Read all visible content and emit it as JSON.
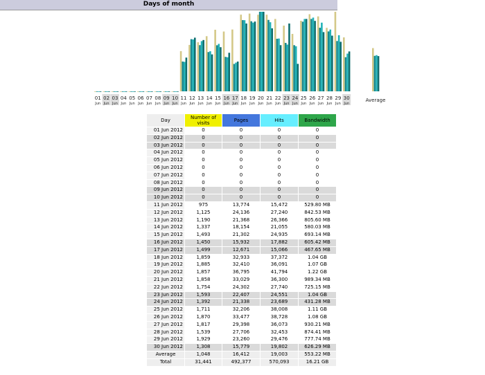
{
  "title": "Days of month",
  "colors": {
    "visits": "#f0f000",
    "pages": "#4477dd",
    "hits": "#66eeff",
    "bandwidth": "#2ea64a",
    "bar_visits": "#d4c888",
    "bar_pages": "#1a8a90",
    "bar_hits": "#22b3b8",
    "bar_bandwidth": "#0f6e6e"
  },
  "table": {
    "headers": [
      "Day",
      "Number of visits",
      "Pages",
      "Hits",
      "Bandwidth"
    ],
    "rows": [
      [
        "01 Jun 2012",
        "0",
        "0",
        "0",
        "0"
      ],
      [
        "02 Jun 2012",
        "0",
        "0",
        "0",
        "0"
      ],
      [
        "03 Jun 2012",
        "0",
        "0",
        "0",
        "0"
      ],
      [
        "04 Jun 2012",
        "0",
        "0",
        "0",
        "0"
      ],
      [
        "05 Jun 2012",
        "0",
        "0",
        "0",
        "0"
      ],
      [
        "06 Jun 2012",
        "0",
        "0",
        "0",
        "0"
      ],
      [
        "07 Jun 2012",
        "0",
        "0",
        "0",
        "0"
      ],
      [
        "08 Jun 2012",
        "0",
        "0",
        "0",
        "0"
      ],
      [
        "09 Jun 2012",
        "0",
        "0",
        "0",
        "0"
      ],
      [
        "10 Jun 2012",
        "0",
        "0",
        "0",
        "0"
      ],
      [
        "11 Jun 2012",
        "975",
        "13,774",
        "15,472",
        "529.80 MB"
      ],
      [
        "12 Jun 2012",
        "1,125",
        "24,136",
        "27,240",
        "842.53 MB"
      ],
      [
        "13 Jun 2012",
        "1,190",
        "21,368",
        "26,366",
        "805.60 MB"
      ],
      [
        "14 Jun 2012",
        "1,337",
        "18,154",
        "21,055",
        "580.03 MB"
      ],
      [
        "15 Jun 2012",
        "1,493",
        "21,302",
        "24,935",
        "693.14 MB"
      ],
      [
        "16 Jun 2012",
        "1,450",
        "15,932",
        "17,882",
        "605.42 MB"
      ],
      [
        "17 Jun 2012",
        "1,499",
        "12,671",
        "15,066",
        "467.65 MB"
      ],
      [
        "18 Jun 2012",
        "1,859",
        "32,933",
        "37,372",
        "1.04 GB"
      ],
      [
        "19 Jun 2012",
        "1,885",
        "32,410",
        "36,091",
        "1.07 GB"
      ],
      [
        "20 Jun 2012",
        "1,857",
        "36,795",
        "41,794",
        "1.22 GB"
      ],
      [
        "21 Jun 2012",
        "1,858",
        "33,029",
        "36,300",
        "989.34 MB"
      ],
      [
        "22 Jun 2012",
        "1,754",
        "24,302",
        "27,740",
        "725.15 MB"
      ],
      [
        "23 Jun 2012",
        "1,593",
        "22,407",
        "24,551",
        "1.04 GB"
      ],
      [
        "24 Jun 2012",
        "1,392",
        "21,338",
        "23,689",
        "431.28 MB"
      ],
      [
        "25 Jun 2012",
        "1,711",
        "32,206",
        "38,008",
        "1.11 GB"
      ],
      [
        "26 Jun 2012",
        "1,870",
        "33,477",
        "38,728",
        "1.08 GB"
      ],
      [
        "27 Jun 2012",
        "1,817",
        "29,398",
        "36,073",
        "930.21 MB"
      ],
      [
        "28 Jun 2012",
        "1,539",
        "27,706",
        "32,453",
        "874.41 MB"
      ],
      [
        "29 Jun 2012",
        "1,929",
        "23,260",
        "29,476",
        "777.74 MB"
      ],
      [
        "30 Jun 2012",
        "1,308",
        "15,779",
        "19,802",
        "626.29 MB"
      ]
    ],
    "weekend_days": [
      2,
      3,
      9,
      10,
      16,
      17,
      23,
      24,
      30
    ],
    "summary": [
      [
        "Average",
        "1,048",
        "16,412",
        "19,003",
        "553.22 MB"
      ],
      [
        "Total",
        "31,441",
        "492,377",
        "570,093",
        "16.21 GB"
      ]
    ]
  },
  "chart_data": {
    "type": "bar",
    "categories": [
      "01",
      "02",
      "03",
      "04",
      "05",
      "06",
      "07",
      "08",
      "09",
      "10",
      "11",
      "12",
      "13",
      "14",
      "15",
      "16",
      "17",
      "18",
      "19",
      "20",
      "21",
      "22",
      "23",
      "24",
      "25",
      "26",
      "27",
      "28",
      "29",
      "30"
    ],
    "category_sub": "Jun",
    "average_label": "Average",
    "series": [
      {
        "name": "Number of visits",
        "values": [
          0,
          0,
          0,
          0,
          0,
          0,
          0,
          0,
          0,
          0,
          975,
          1125,
          1190,
          1337,
          1493,
          1450,
          1499,
          1859,
          1885,
          1857,
          1858,
          1754,
          1593,
          1392,
          1711,
          1870,
          1817,
          1539,
          1929,
          1308
        ],
        "average": 1048
      },
      {
        "name": "Pages",
        "values": [
          0,
          0,
          0,
          0,
          0,
          0,
          0,
          0,
          0,
          0,
          13774,
          24136,
          21368,
          18154,
          21302,
          15932,
          12671,
          32933,
          32410,
          36795,
          33029,
          24302,
          22407,
          21338,
          32206,
          33477,
          29398,
          27706,
          23260,
          15779
        ],
        "average": 16412
      },
      {
        "name": "Hits",
        "values": [
          0,
          0,
          0,
          0,
          0,
          0,
          0,
          0,
          0,
          0,
          15472,
          27240,
          26366,
          21055,
          24935,
          17882,
          15066,
          37372,
          36091,
          41794,
          36300,
          27740,
          24551,
          23689,
          38008,
          38728,
          36073,
          32453,
          29476,
          19802
        ],
        "average": 19003
      },
      {
        "name": "Bandwidth",
        "values": [
          0,
          0,
          0,
          0,
          0,
          0,
          0,
          0,
          0,
          0,
          529.8,
          842.53,
          805.6,
          580.03,
          693.14,
          605.42,
          467.65,
          1064.96,
          1095.68,
          1249.28,
          989.34,
          725.15,
          1064.96,
          431.28,
          1136.64,
          1105.92,
          930.21,
          874.41,
          777.74,
          626.29
        ],
        "average": 553.22
      }
    ],
    "weekend_days": [
      2,
      3,
      9,
      10,
      16,
      17,
      23,
      24,
      30
    ]
  }
}
